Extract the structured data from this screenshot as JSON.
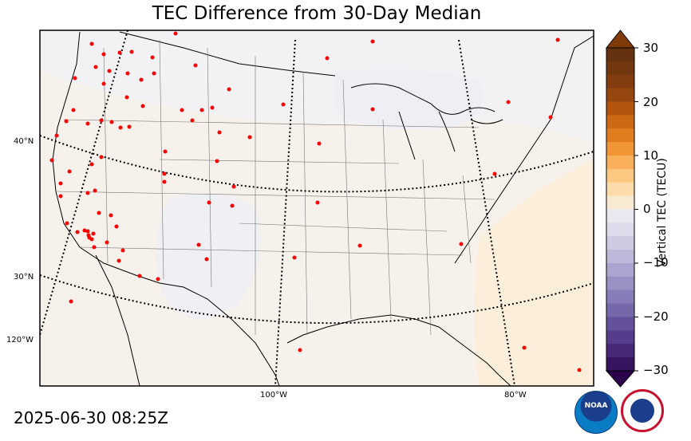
{
  "chart_data": {
    "type": "heatmap",
    "title": "TEC Difference from 30-Day Median",
    "timestamp": "2025-06-30 08:25Z",
    "colorbar": {
      "label": "Vertical TEC (TECU)",
      "ticks": [
        "30",
        "20",
        "10",
        "0",
        "−10",
        "−20",
        "−30"
      ],
      "range": [
        -30,
        30
      ],
      "step": 2.5,
      "extend": "both",
      "colormap": "PuOr"
    },
    "grid_labels": {
      "latitude": [
        "40°N",
        "30°N"
      ],
      "longitude": [
        "120°W",
        "100°W",
        "80°W"
      ]
    },
    "stations": {
      "marker": "red dots",
      "count": 88
    },
    "colors": {
      "positive": "#f6efe4",
      "negative": "#eeeff5",
      "station": "#ff0000"
    }
  },
  "logos": {
    "noaa": "NOAA",
    "nws": "NATIONAL WEATHER SERVICE"
  }
}
